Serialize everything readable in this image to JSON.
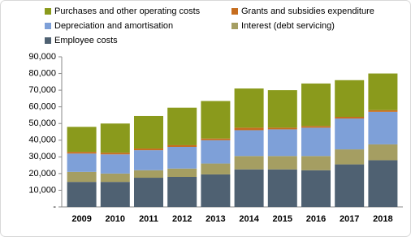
{
  "chart_data": {
    "type": "stacked_bar",
    "categories": [
      "2009",
      "2010",
      "2011",
      "2012",
      "2013",
      "2014",
      "2015",
      "2016",
      "2017",
      "2018"
    ],
    "series": [
      {
        "name": "Employee costs",
        "color": "#4f6172",
        "values": [
          15000,
          15000,
          17500,
          18000,
          19500,
          22500,
          22500,
          22000,
          25500,
          28000
        ]
      },
      {
        "name": "Interest (debt servicing)",
        "color": "#a59e62",
        "values": [
          6000,
          5000,
          4500,
          5000,
          6500,
          8000,
          8000,
          8500,
          9000,
          9500
        ]
      },
      {
        "name": "Depreciation and amortisation",
        "color": "#7ea0d8",
        "values": [
          11000,
          11500,
          12000,
          13000,
          14000,
          15500,
          16000,
          17000,
          18500,
          19500
        ]
      },
      {
        "name": "Grants and subsidies expenditure",
        "color": "#c66d1e",
        "values": [
          1000,
          1000,
          1000,
          1000,
          1000,
          1500,
          1000,
          1000,
          1000,
          1000
        ]
      },
      {
        "name": "Purchases and other operating costs",
        "color": "#8a9a1c",
        "values": [
          15000,
          17500,
          19500,
          22500,
          22500,
          23500,
          22500,
          25500,
          22000,
          22000
        ]
      }
    ],
    "ylim": [
      0,
      90000
    ],
    "yticks": [
      {
        "value": 0,
        "label": "-"
      },
      {
        "value": 10000,
        "label": "10,000"
      },
      {
        "value": 20000,
        "label": "20,000"
      },
      {
        "value": 30000,
        "label": "30,000"
      },
      {
        "value": 40000,
        "label": "40,000"
      },
      {
        "value": 50000,
        "label": "50,000"
      },
      {
        "value": 60000,
        "label": "60,000"
      },
      {
        "value": 70000,
        "label": "70,000"
      },
      {
        "value": 80000,
        "label": "80,000"
      },
      {
        "value": 90000,
        "label": "90,000"
      }
    ]
  }
}
